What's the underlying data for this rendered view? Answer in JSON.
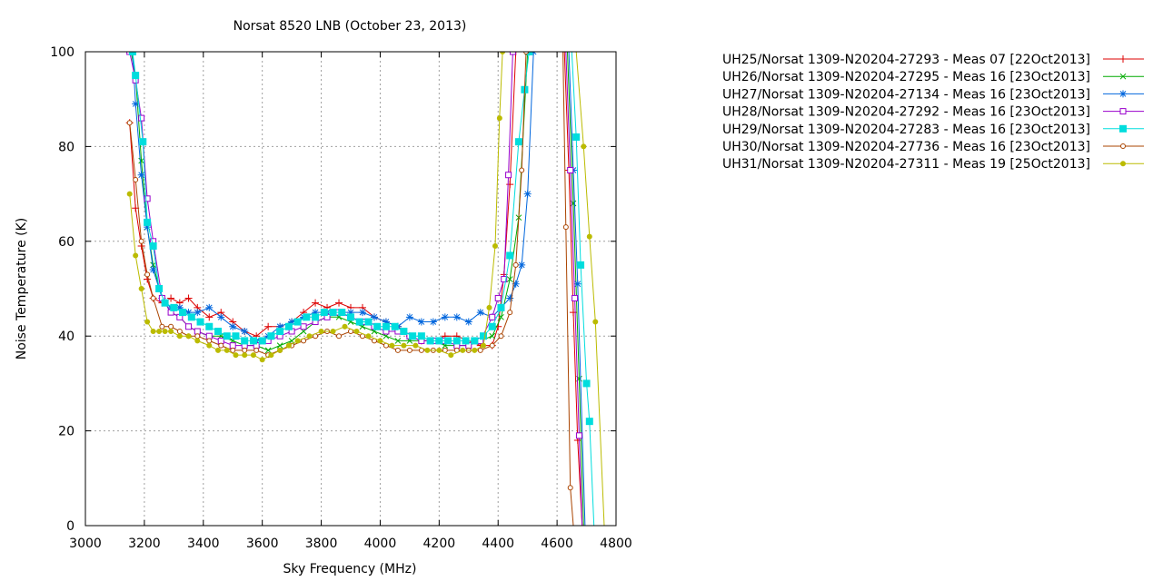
{
  "chart_data": {
    "type": "line",
    "title": "Norsat 8520 LNB (October 23, 2013)",
    "xlabel": "Sky Frequency (MHz)",
    "ylabel": "Noise Temperature (K)",
    "xlim": [
      3000,
      4800
    ],
    "ylim": [
      0,
      100
    ],
    "xticks": [
      3000,
      3200,
      3400,
      3600,
      3800,
      4000,
      4200,
      4400,
      4600,
      4800
    ],
    "yticks": [
      0,
      20,
      40,
      60,
      80,
      100
    ],
    "grid": true,
    "legend_position": "outside-right",
    "series": [
      {
        "name": "UH25/Norsat 1309-N20204-27293 - Meas 07 [22Oct2013]",
        "color": "#dd0000",
        "marker": "plus",
        "x": [
          3150,
          3170,
          3190,
          3210,
          3230,
          3260,
          3290,
          3320,
          3350,
          3380,
          3420,
          3460,
          3500,
          3540,
          3580,
          3620,
          3660,
          3700,
          3740,
          3780,
          3820,
          3860,
          3900,
          3940,
          3980,
          4020,
          4060,
          4100,
          4140,
          4180,
          4220,
          4260,
          4300,
          4340,
          4380,
          4400,
          4420,
          4440,
          4460
        ],
        "y": [
          85,
          67,
          59,
          52,
          48,
          47,
          48,
          47,
          48,
          46,
          44,
          45,
          43,
          41,
          40,
          42,
          42,
          43,
          45,
          47,
          46,
          47,
          46,
          46,
          44,
          43,
          42,
          40,
          39,
          39,
          40,
          40,
          39,
          38,
          38,
          42,
          53,
          72,
          100
        ]
      },
      {
        "name": "UH26/Norsat 1309-N20204-27295 - Meas 16 [23Oct2013]",
        "color": "#00aa00",
        "marker": "x",
        "x": [
          3155,
          3170,
          3190,
          3210,
          3230,
          3260,
          3290,
          3320,
          3350,
          3380,
          3420,
          3460,
          3500,
          3540,
          3580,
          3620,
          3660,
          3700,
          3740,
          3780,
          3820,
          3860,
          3900,
          3940,
          3980,
          4020,
          4060,
          4100,
          4140,
          4180,
          4220,
          4260,
          4300,
          4340,
          4380,
          4410,
          4440,
          4470,
          4500
        ],
        "y": [
          100,
          95,
          77,
          63,
          55,
          48,
          45,
          44,
          42,
          41,
          40,
          40,
          39,
          38,
          38,
          37,
          38,
          39,
          41,
          43,
          44,
          44,
          43,
          42,
          41,
          40,
          39,
          39,
          39,
          39,
          38,
          38,
          38,
          39,
          40,
          44,
          52,
          65,
          100
        ]
      },
      {
        "name": "UH27/Norsat 1309-N20204-27134 - Meas 16 [23Oct2013]",
        "color": "#0066dd",
        "marker": "star",
        "x": [
          3160,
          3170,
          3190,
          3210,
          3230,
          3260,
          3290,
          3320,
          3350,
          3380,
          3420,
          3460,
          3500,
          3540,
          3580,
          3620,
          3660,
          3700,
          3740,
          3780,
          3820,
          3860,
          3900,
          3940,
          3980,
          4020,
          4060,
          4100,
          4140,
          4180,
          4220,
          4260,
          4300,
          4340,
          4380,
          4410,
          4440,
          4460,
          4480,
          4500,
          4520
        ],
        "y": [
          100,
          89,
          74,
          63,
          54,
          48,
          46,
          46,
          45,
          45,
          46,
          44,
          42,
          41,
          39,
          40,
          42,
          43,
          44,
          45,
          45,
          45,
          45,
          45,
          44,
          43,
          42,
          44,
          43,
          43,
          44,
          44,
          43,
          45,
          44,
          46,
          48,
          51,
          55,
          70,
          100
        ]
      },
      {
        "name": "UH28/Norsat 1309-N20204-27292 - Meas 16 [23Oct2013]",
        "color": "#9900cc",
        "marker": "square",
        "x": [
          3150,
          3170,
          3190,
          3210,
          3230,
          3260,
          3290,
          3320,
          3350,
          3380,
          3420,
          3460,
          3500,
          3540,
          3580,
          3620,
          3660,
          3700,
          3740,
          3780,
          3820,
          3860,
          3900,
          3940,
          3980,
          4020,
          4060,
          4100,
          4140,
          4180,
          4220,
          4260,
          4300,
          4340,
          4380,
          4400,
          4420,
          4435,
          4450
        ],
        "y": [
          100,
          94,
          86,
          69,
          60,
          48,
          45,
          44,
          42,
          41,
          40,
          39,
          38,
          38,
          38,
          39,
          40,
          41,
          42,
          43,
          44,
          45,
          44,
          43,
          42,
          41,
          41,
          40,
          39,
          39,
          39,
          38,
          38,
          39,
          44,
          48,
          52,
          74,
          100
        ]
      },
      {
        "name": "UH29/Norsat 1309-N20204-27283 - Meas 16 [23Oct2013]",
        "color": "#00dddd",
        "marker": "filled-square",
        "x": [
          3160,
          3170,
          3195,
          3210,
          3230,
          3250,
          3270,
          3300,
          3330,
          3360,
          3390,
          3420,
          3450,
          3480,
          3510,
          3540,
          3570,
          3600,
          3630,
          3660,
          3690,
          3720,
          3750,
          3780,
          3810,
          3840,
          3870,
          3900,
          3930,
          3960,
          3990,
          4020,
          4050,
          4080,
          4110,
          4140,
          4170,
          4200,
          4230,
          4260,
          4290,
          4320,
          4350,
          4380,
          4410,
          4440,
          4470,
          4490,
          4505
        ],
        "y": [
          100,
          95,
          81,
          64,
          59,
          50,
          47,
          46,
          45,
          44,
          43,
          42,
          41,
          40,
          40,
          39,
          39,
          39,
          40,
          41,
          42,
          43,
          44,
          44,
          45,
          45,
          45,
          44,
          43,
          43,
          42,
          42,
          42,
          41,
          40,
          40,
          39,
          39,
          39,
          39,
          39,
          39,
          40,
          42,
          46,
          57,
          81,
          92,
          100
        ]
      },
      {
        "name": "UH30/Norsat 1309-N20204-27736 - Meas 16 [23Oct2013]",
        "color": "#aa4400",
        "marker": "circle",
        "x": [
          3150,
          3170,
          3190,
          3210,
          3230,
          3260,
          3290,
          3320,
          3350,
          3380,
          3420,
          3460,
          3500,
          3540,
          3580,
          3620,
          3660,
          3700,
          3740,
          3780,
          3820,
          3860,
          3900,
          3940,
          3980,
          4020,
          4060,
          4100,
          4140,
          4180,
          4220,
          4260,
          4300,
          4340,
          4380,
          4410,
          4440,
          4460,
          4480,
          4495
        ],
        "y": [
          85,
          73,
          60,
          53,
          48,
          42,
          42,
          41,
          40,
          40,
          39,
          38,
          37,
          37,
          37,
          36,
          37,
          38,
          39,
          40,
          41,
          40,
          41,
          40,
          39,
          38,
          37,
          37,
          37,
          37,
          37,
          37,
          37,
          37,
          38,
          40,
          45,
          55,
          75,
          100
        ]
      },
      {
        "name": "UH31/Norsat 1309-N20204-27311 - Meas 19 [25Oct2013]",
        "color": "#bbbb00",
        "marker": "filled-circle",
        "x": [
          3150,
          3170,
          3190,
          3210,
          3230,
          3250,
          3270,
          3290,
          3320,
          3350,
          3380,
          3420,
          3450,
          3480,
          3510,
          3540,
          3570,
          3600,
          3630,
          3660,
          3690,
          3720,
          3760,
          3800,
          3840,
          3880,
          3920,
          3960,
          4000,
          4040,
          4080,
          4120,
          4160,
          4200,
          4240,
          4280,
          4320,
          4350,
          4370,
          4390,
          4405,
          4415
        ],
        "y": [
          70,
          57,
          50,
          43,
          41,
          41,
          41,
          41,
          40,
          40,
          39,
          38,
          37,
          37,
          36,
          36,
          36,
          35,
          36,
          37,
          38,
          39,
          40,
          41,
          41,
          42,
          41,
          40,
          39,
          38,
          38,
          38,
          37,
          37,
          36,
          37,
          37,
          38,
          46,
          59,
          86,
          100
        ]
      }
    ],
    "rolloff_lines": [
      {
        "series": "UH25/Norsat 1309-N20204-27293 - Meas 07 [22Oct2013]",
        "x": [
          4625,
          4640,
          4655,
          4670,
          4685
        ],
        "y": [
          100,
          75,
          45,
          18,
          0
        ]
      },
      {
        "series": "UH26/Norsat 1309-N20204-27295 - Meas 16 [23Oct2013]",
        "x": [
          4635,
          4655,
          4675,
          4690
        ],
        "y": [
          100,
          68,
          31,
          0
        ]
      },
      {
        "series": "UH27/Norsat 1309-N20204-27134 - Meas 16 [23Oct2013]",
        "x": [
          4640,
          4655,
          4670,
          4695
        ],
        "y": [
          100,
          75,
          51,
          0
        ]
      },
      {
        "series": "UH28/Norsat 1309-N20204-27292 - Meas 16 [23Oct2013]",
        "x": [
          4630,
          4645,
          4660,
          4675,
          4685
        ],
        "y": [
          100,
          75,
          48,
          19,
          0
        ]
      },
      {
        "series": "UH29/Norsat 1309-N20204-27283 - Meas 16 [23Oct2013]",
        "x": [
          4650,
          4665,
          4680,
          4700,
          4710,
          4725
        ],
        "y": [
          100,
          82,
          55,
          30,
          22,
          0
        ]
      },
      {
        "series": "UH30/Norsat 1309-N20204-27736 - Meas 16 [23Oct2013]",
        "x": [
          4620,
          4630,
          4645,
          4655,
          4665
        ],
        "y": [
          100,
          63,
          8,
          0,
          0
        ]
      },
      {
        "series": "UH31/Norsat 1309-N20204-27311 - Meas 19 [25Oct2013]",
        "x": [
          4665,
          4690,
          4710,
          4730,
          4760
        ],
        "y": [
          100,
          80,
          61,
          43,
          0
        ]
      }
    ]
  }
}
